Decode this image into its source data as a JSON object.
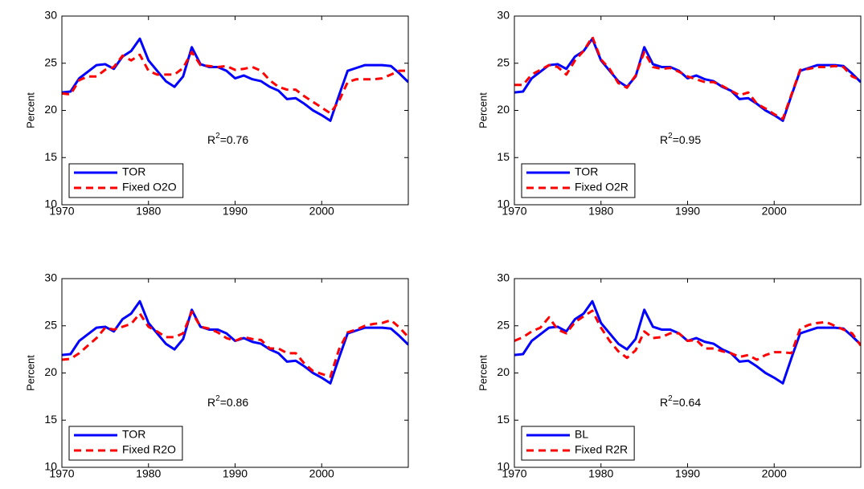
{
  "chart_data": [
    {
      "type": "line",
      "ylabel": "Percent",
      "annotation": [
        "R",
        "2",
        "=0.76"
      ],
      "legend": "lower left",
      "xlim": [
        1970,
        2010
      ],
      "ylim": [
        10,
        30
      ],
      "xticks": [
        1970,
        1980,
        1990,
        2000
      ],
      "yticks": [
        10,
        15,
        20,
        25,
        30
      ],
      "x": [
        1970,
        1971,
        1972,
        1973,
        1974,
        1975,
        1976,
        1977,
        1978,
        1979,
        1980,
        1981,
        1982,
        1983,
        1984,
        1985,
        1986,
        1987,
        1988,
        1989,
        1990,
        1991,
        1992,
        1993,
        1994,
        1995,
        1996,
        1997,
        1998,
        1999,
        2000,
        2001,
        2002,
        2003,
        2004,
        2005,
        2006,
        2007,
        2008,
        2009,
        2010
      ],
      "series": [
        {
          "name": "TOR",
          "color": "#0000ff",
          "linestyle": "solid",
          "values": [
            21.9,
            22.0,
            23.4,
            24.1,
            24.8,
            24.9,
            24.4,
            25.7,
            26.3,
            27.6,
            25.3,
            24.2,
            23.1,
            22.5,
            23.6,
            26.7,
            24.9,
            24.6,
            24.6,
            24.2,
            23.4,
            23.7,
            23.3,
            23.1,
            22.5,
            22.1,
            21.2,
            21.3,
            20.7,
            20.0,
            19.5,
            18.9,
            21.6,
            24.2,
            24.5,
            24.8,
            24.8,
            24.8,
            24.7,
            23.9,
            23.0
          ]
        },
        {
          "name": "Fixed O2O",
          "color": "#ff0000",
          "linestyle": "dashed",
          "values": [
            21.8,
            21.7,
            23.2,
            23.6,
            23.6,
            24.3,
            24.6,
            25.8,
            25.3,
            25.9,
            24.2,
            23.8,
            23.8,
            23.8,
            24.5,
            26.2,
            24.8,
            24.7,
            24.6,
            24.7,
            24.3,
            24.4,
            24.6,
            24.2,
            23.2,
            22.5,
            22.2,
            22.2,
            21.5,
            20.9,
            20.3,
            19.7,
            21.0,
            23.0,
            23.3,
            23.3,
            23.3,
            23.4,
            23.8,
            24.2,
            24.2
          ]
        }
      ]
    },
    {
      "type": "line",
      "ylabel": "Percent",
      "annotation": [
        "R",
        "2",
        "=0.95"
      ],
      "legend": "lower left",
      "xlim": [
        1970,
        2010
      ],
      "ylim": [
        10,
        30
      ],
      "xticks": [
        1970,
        1980,
        1990,
        2000
      ],
      "yticks": [
        10,
        15,
        20,
        25,
        30
      ],
      "x": [
        1970,
        1971,
        1972,
        1973,
        1974,
        1975,
        1976,
        1977,
        1978,
        1979,
        1980,
        1981,
        1982,
        1983,
        1984,
        1985,
        1986,
        1987,
        1988,
        1989,
        1990,
        1991,
        1992,
        1993,
        1994,
        1995,
        1996,
        1997,
        1998,
        1999,
        2000,
        2001,
        2002,
        2003,
        2004,
        2005,
        2006,
        2007,
        2008,
        2009,
        2010
      ],
      "series": [
        {
          "name": "TOR",
          "color": "#0000ff",
          "linestyle": "solid",
          "values": [
            21.9,
            22.0,
            23.4,
            24.1,
            24.8,
            24.9,
            24.4,
            25.7,
            26.3,
            27.6,
            25.3,
            24.2,
            23.1,
            22.5,
            23.6,
            26.7,
            24.9,
            24.6,
            24.6,
            24.2,
            23.4,
            23.7,
            23.3,
            23.1,
            22.5,
            22.1,
            21.2,
            21.3,
            20.7,
            20.0,
            19.5,
            18.9,
            21.6,
            24.2,
            24.5,
            24.8,
            24.8,
            24.8,
            24.7,
            23.9,
            23.0
          ]
        },
        {
          "name": "Fixed O2R",
          "color": "#ff0000",
          "linestyle": "dashed",
          "values": [
            22.7,
            22.7,
            23.8,
            24.3,
            24.8,
            24.6,
            23.8,
            25.3,
            26.3,
            27.8,
            25.4,
            24.4,
            22.9,
            22.4,
            23.7,
            26.2,
            24.6,
            24.4,
            24.5,
            24.1,
            23.6,
            23.3,
            23.0,
            23.0,
            22.6,
            22.1,
            21.6,
            21.9,
            20.7,
            20.2,
            19.6,
            19.1,
            21.7,
            24.3,
            24.4,
            24.6,
            24.6,
            24.7,
            24.6,
            23.6,
            23.2
          ]
        }
      ]
    },
    {
      "type": "line",
      "ylabel": "Percent",
      "annotation": [
        "R",
        "2",
        "=0.86"
      ],
      "legend": "lower left",
      "xlim": [
        1970,
        2010
      ],
      "ylim": [
        10,
        30
      ],
      "xticks": [
        1970,
        1980,
        1990,
        2000
      ],
      "yticks": [
        10,
        15,
        20,
        25,
        30
      ],
      "x": [
        1970,
        1971,
        1972,
        1973,
        1974,
        1975,
        1976,
        1977,
        1978,
        1979,
        1980,
        1981,
        1982,
        1983,
        1984,
        1985,
        1986,
        1987,
        1988,
        1989,
        1990,
        1991,
        1992,
        1993,
        1994,
        1995,
        1996,
        1997,
        1998,
        1999,
        2000,
        2001,
        2002,
        2003,
        2004,
        2005,
        2006,
        2007,
        2008,
        2009,
        2010
      ],
      "series": [
        {
          "name": "TOR",
          "color": "#0000ff",
          "linestyle": "solid",
          "values": [
            21.9,
            22.0,
            23.4,
            24.1,
            24.8,
            24.9,
            24.4,
            25.7,
            26.3,
            27.6,
            25.3,
            24.2,
            23.1,
            22.5,
            23.6,
            26.7,
            24.9,
            24.6,
            24.6,
            24.2,
            23.4,
            23.7,
            23.3,
            23.1,
            22.5,
            22.1,
            21.2,
            21.3,
            20.7,
            20.0,
            19.5,
            18.9,
            21.6,
            24.2,
            24.5,
            24.8,
            24.8,
            24.8,
            24.7,
            23.9,
            23.0
          ]
        },
        {
          "name": "Fixed R2O",
          "color": "#ff0000",
          "linestyle": "dashed",
          "values": [
            21.4,
            21.5,
            22.1,
            22.9,
            23.7,
            24.8,
            24.6,
            24.9,
            25.2,
            26.3,
            24.9,
            24.4,
            23.8,
            23.8,
            24.2,
            26.5,
            24.9,
            24.7,
            24.3,
            23.7,
            23.4,
            23.8,
            23.6,
            23.5,
            22.6,
            22.6,
            22.1,
            22.1,
            21.0,
            20.2,
            19.9,
            19.6,
            22.5,
            24.3,
            24.6,
            25.0,
            25.2,
            25.3,
            25.6,
            24.8,
            23.8
          ]
        }
      ]
    },
    {
      "type": "line",
      "ylabel": "Percent",
      "annotation": [
        "R",
        "2",
        "=0.64"
      ],
      "legend": "lower left",
      "xlim": [
        1970,
        2010
      ],
      "ylim": [
        10,
        30
      ],
      "xticks": [
        1970,
        1980,
        1990,
        2000
      ],
      "yticks": [
        10,
        15,
        20,
        25,
        30
      ],
      "x": [
        1970,
        1971,
        1972,
        1973,
        1974,
        1975,
        1976,
        1977,
        1978,
        1979,
        1980,
        1981,
        1982,
        1983,
        1984,
        1985,
        1986,
        1987,
        1988,
        1989,
        1990,
        1991,
        1992,
        1993,
        1994,
        1995,
        1996,
        1997,
        1998,
        1999,
        2000,
        2001,
        2002,
        2003,
        2004,
        2005,
        2006,
        2007,
        2008,
        2009,
        2010
      ],
      "series": [
        {
          "name": "BL",
          "color": "#0000ff",
          "linestyle": "solid",
          "values": [
            21.9,
            22.0,
            23.4,
            24.1,
            24.8,
            24.9,
            24.4,
            25.7,
            26.3,
            27.6,
            25.3,
            24.2,
            23.1,
            22.5,
            23.6,
            26.7,
            24.9,
            24.6,
            24.6,
            24.2,
            23.4,
            23.7,
            23.3,
            23.1,
            22.5,
            22.1,
            21.2,
            21.3,
            20.7,
            20.0,
            19.5,
            18.9,
            21.6,
            24.2,
            24.5,
            24.8,
            24.8,
            24.8,
            24.7,
            23.9,
            23.0
          ]
        },
        {
          "name": "Fixed R2R",
          "color": "#ff0000",
          "linestyle": "dashed",
          "values": [
            23.4,
            23.8,
            24.4,
            24.8,
            25.9,
            24.6,
            24.2,
            25.4,
            26.0,
            26.6,
            24.8,
            23.4,
            22.3,
            21.6,
            22.4,
            24.4,
            23.7,
            23.8,
            24.2,
            24.2,
            23.4,
            23.5,
            22.6,
            22.6,
            22.3,
            22.1,
            21.7,
            21.9,
            21.4,
            21.9,
            22.2,
            22.2,
            22.1,
            24.7,
            25.1,
            25.3,
            25.4,
            25.0,
            24.6,
            24.2,
            22.9
          ]
        }
      ]
    }
  ]
}
